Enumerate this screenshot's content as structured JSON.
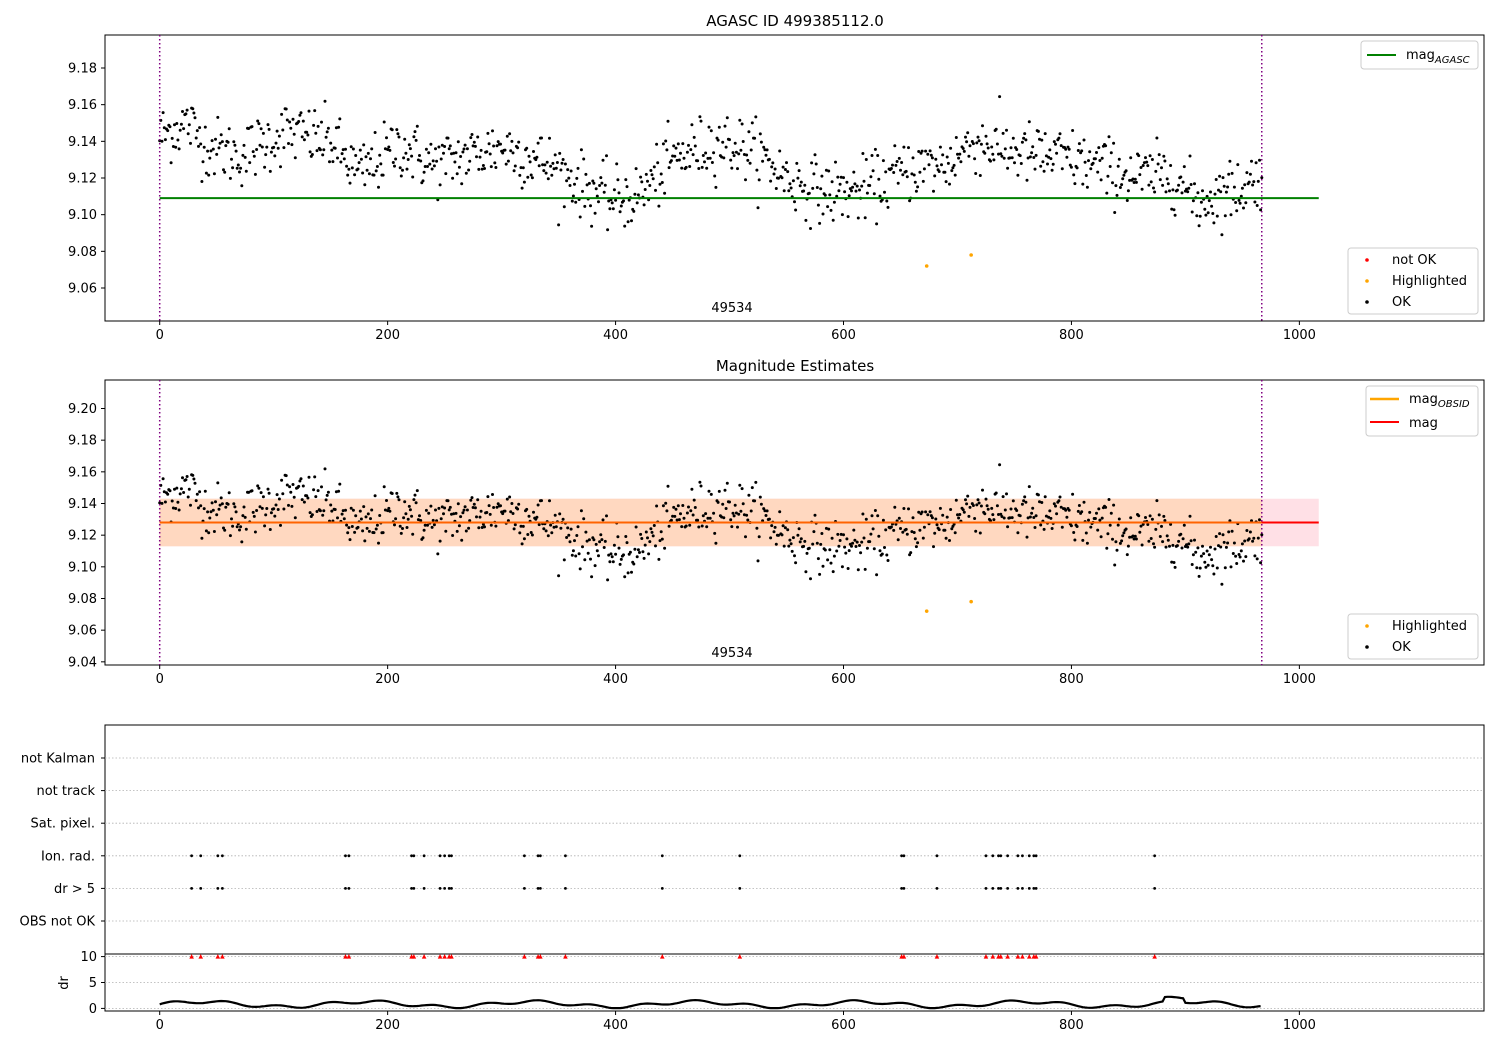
{
  "chart_data": [
    {
      "type": "scatter",
      "title": "AGASC ID 499385112.0",
      "xlim": [
        -48,
        1162
      ],
      "ylim": [
        9.042,
        9.198
      ],
      "xticks": [
        "0",
        "200",
        "400",
        "600",
        "800",
        "1000"
      ],
      "yticks": [
        "9.06",
        "9.08",
        "9.10",
        "9.12",
        "9.14",
        "9.16",
        "9.18"
      ],
      "obsid_label": "49534",
      "obs_boundaries": [
        0,
        967
      ],
      "lines": [
        {
          "name": "mag$_{AGASC}$",
          "y": 9.109,
          "color": "#008000"
        }
      ],
      "legend_lines": [
        {
          "main": "mag",
          "sub": "AGASC",
          "color": "#008000"
        }
      ],
      "legend_points": [
        {
          "label": "not OK",
          "color": "#ff0000"
        },
        {
          "label": "Highlighted",
          "color": "#ffa500"
        },
        {
          "label": "OK",
          "color": "#000000"
        }
      ],
      "highlighted": [
        {
          "x": 673,
          "y": 9.072
        },
        {
          "x": 712,
          "y": 9.078
        }
      ],
      "ok_series": "x from 0 to 967, y ≈ 9.09–9.17 (mag estimates, see script-generated profile)"
    },
    {
      "type": "scatter",
      "title": "Magnitude Estimates",
      "xlim": [
        -48,
        1162
      ],
      "ylim": [
        9.038,
        9.218
      ],
      "xticks": [
        "0",
        "200",
        "400",
        "600",
        "800",
        "1000"
      ],
      "yticks": [
        "9.04",
        "9.06",
        "9.08",
        "9.10",
        "9.12",
        "9.14",
        "9.16",
        "9.18",
        "9.20"
      ],
      "obsid_label": "49534",
      "obs_boundaries": [
        0,
        967
      ],
      "mag": 9.128,
      "mag_band": [
        9.113,
        9.143
      ],
      "legend_lines": [
        {
          "main": "mag",
          "sub": "OBSID",
          "color": "#ffa500"
        },
        {
          "main": "mag",
          "sub": "",
          "color": "#ff0000"
        }
      ],
      "legend_points": [
        {
          "label": "Highlighted",
          "color": "#ffa500"
        },
        {
          "label": "OK",
          "color": "#000000"
        }
      ],
      "highlighted": [
        {
          "x": 673,
          "y": 9.072
        },
        {
          "x": 712,
          "y": 9.078
        }
      ]
    },
    {
      "type": "scatter",
      "title": "",
      "xlim": [
        -48,
        1162
      ],
      "xticks": [
        "0",
        "200",
        "400",
        "600",
        "800",
        "1000"
      ],
      "flag_rows": [
        "not Kalman",
        "not track",
        "Sat. pixel.",
        "Ion. rad.",
        "dr > 5",
        "OBS not OK"
      ],
      "flag_points_x": [
        28,
        36,
        51,
        55,
        163,
        166,
        221,
        223,
        232,
        246,
        250,
        254,
        256,
        320,
        332,
        334,
        356,
        441,
        509,
        651,
        653,
        682,
        725,
        731,
        736,
        738,
        744,
        753,
        757,
        763,
        767,
        769,
        873
      ],
      "flag_rows_with_points": [
        "Ion. rad.",
        "dr > 5"
      ],
      "dr_ylabel": "dr",
      "dr_yticks": [
        "0",
        "5",
        "10"
      ],
      "dr_ylim": [
        -0.5,
        10.5
      ],
      "dr_clipped_value": 10
    }
  ]
}
